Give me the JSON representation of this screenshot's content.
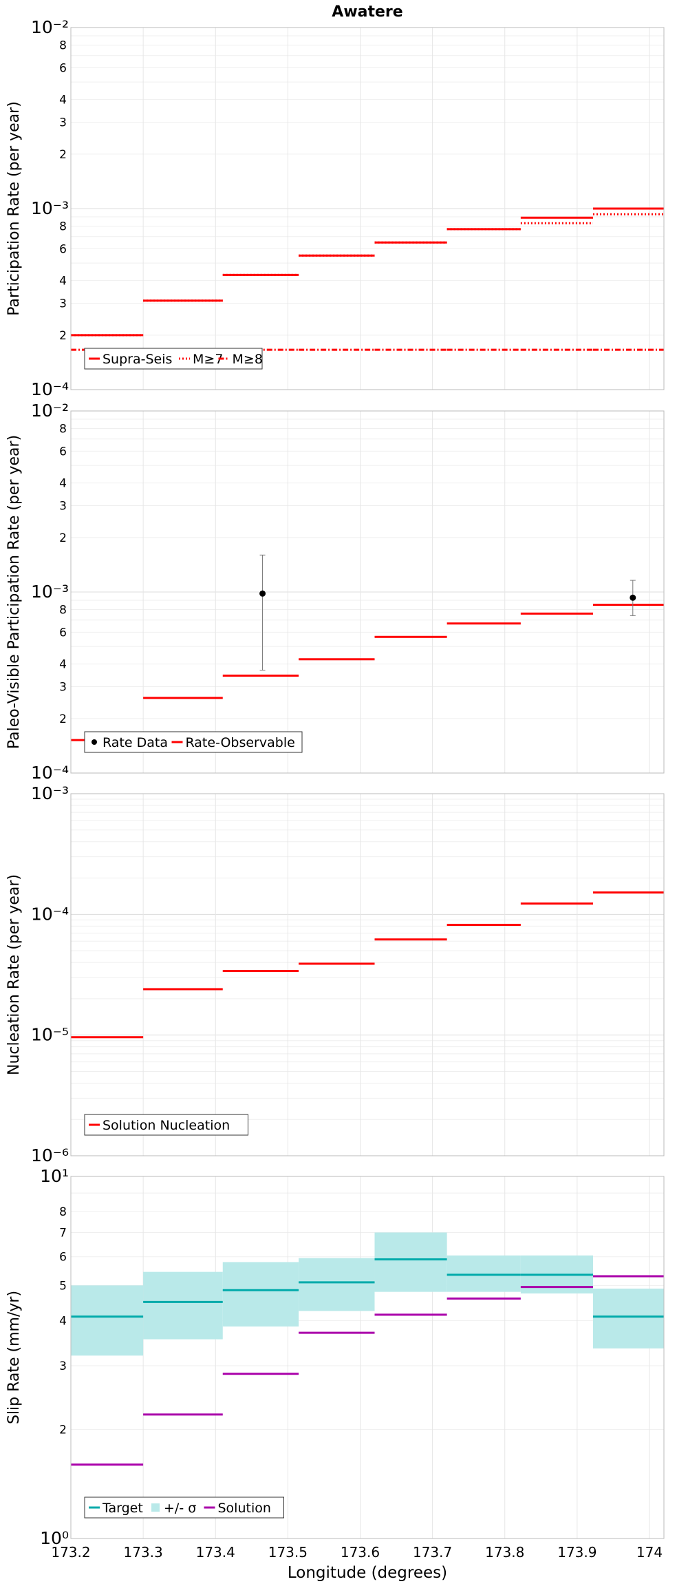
{
  "chart_data": [
    {
      "type": "step",
      "title": "Awatere",
      "ylabel": "Participation Rate (per year)",
      "yscale": "log",
      "ylim": [
        0.0001,
        0.01
      ],
      "xlim": [
        173.2,
        174.02
      ],
      "grid": true,
      "legend_position": "bottom-left",
      "bins": [
        [
          173.2,
          173.3
        ],
        [
          173.3,
          173.41
        ],
        [
          173.41,
          173.515
        ],
        [
          173.515,
          173.62
        ],
        [
          173.62,
          173.72
        ],
        [
          173.72,
          173.822
        ],
        [
          173.822,
          173.922
        ],
        [
          173.922,
          174.022
        ]
      ],
      "series": [
        {
          "name": "Supra-Seis",
          "style": "solid",
          "color": "#ff0000",
          "values": [
            0.0002,
            0.00031,
            0.00043,
            0.00055,
            0.00065,
            0.00077,
            0.00089,
            0.001
          ]
        },
        {
          "name": "M≥7",
          "style": "dotted",
          "color": "#ff0000",
          "values": [
            0.0002,
            0.00031,
            0.00043,
            0.00055,
            0.00065,
            0.00077,
            0.00083,
            0.00093
          ]
        },
        {
          "name": "M≥8",
          "style": "dashdot",
          "color": "#ff0000",
          "values": [
            0.000166,
            0.000166,
            0.000166,
            0.000166,
            0.000166,
            0.000166,
            0.000166,
            0.000166
          ]
        }
      ]
    },
    {
      "type": "step",
      "ylabel": "Paleo-Visible Participation Rate (per year)",
      "yscale": "log",
      "ylim": [
        0.0001,
        0.01
      ],
      "xlim": [
        173.2,
        174.02
      ],
      "grid": true,
      "legend_position": "bottom-left",
      "bins": [
        [
          173.2,
          173.3
        ],
        [
          173.3,
          173.41
        ],
        [
          173.41,
          173.515
        ],
        [
          173.515,
          173.62
        ],
        [
          173.62,
          173.72
        ],
        [
          173.72,
          173.822
        ],
        [
          173.822,
          173.922
        ],
        [
          173.922,
          174.022
        ]
      ],
      "series": [
        {
          "name": "Rate Data",
          "style": "points",
          "color": "#000000",
          "points": [
            {
              "x": 173.465,
              "y": 0.00098,
              "lo": 0.00037,
              "hi": 0.0016
            },
            {
              "x": 173.977,
              "y": 0.00093,
              "lo": 0.00074,
              "hi": 0.00116
            }
          ]
        },
        {
          "name": "Rate-Observable",
          "style": "solid",
          "color": "#ff0000",
          "values": [
            0.000152,
            0.00026,
            0.000345,
            0.000425,
            0.000565,
            0.00067,
            0.00076,
            0.00085
          ]
        }
      ]
    },
    {
      "type": "step",
      "ylabel": "Nucleation Rate (per year)",
      "yscale": "log",
      "ylim": [
        1e-06,
        0.001
      ],
      "xlim": [
        173.2,
        174.02
      ],
      "grid": true,
      "legend_position": "bottom-left",
      "bins": [
        [
          173.2,
          173.3
        ],
        [
          173.3,
          173.41
        ],
        [
          173.41,
          173.515
        ],
        [
          173.515,
          173.62
        ],
        [
          173.62,
          173.72
        ],
        [
          173.72,
          173.822
        ],
        [
          173.822,
          173.922
        ],
        [
          173.922,
          174.022
        ]
      ],
      "series": [
        {
          "name": "Solution Nucleation",
          "style": "solid",
          "color": "#ff0000",
          "values": [
            9.6e-06,
            2.4e-05,
            3.4e-05,
            3.9e-05,
            6.2e-05,
            8.2e-05,
            0.000123,
            0.000152
          ]
        }
      ]
    },
    {
      "type": "step",
      "xlabel": "Longitude (degrees)",
      "ylabel": "Slip Rate (mm/yr)",
      "yscale": "log",
      "ylim": [
        1,
        10
      ],
      "xlim": [
        173.2,
        174.02
      ],
      "xticks": [
        "173.2",
        "173.3",
        "173.4",
        "173.5",
        "173.6",
        "173.7",
        "173.8",
        "173.9",
        "174"
      ],
      "grid": true,
      "legend_position": "bottom-left",
      "bins": [
        [
          173.2,
          173.3
        ],
        [
          173.3,
          173.41
        ],
        [
          173.41,
          173.515
        ],
        [
          173.515,
          173.62
        ],
        [
          173.62,
          173.72
        ],
        [
          173.72,
          173.822
        ],
        [
          173.822,
          173.922
        ],
        [
          173.922,
          174.022
        ]
      ],
      "series": [
        {
          "name": "Target",
          "style": "solid",
          "color": "#00aaaa",
          "values": [
            4.1,
            4.5,
            4.85,
            5.1,
            5.9,
            5.35,
            5.35,
            4.1
          ]
        },
        {
          "name": "+/- σ",
          "style": "band",
          "color": "#b9e9e9",
          "lower": [
            3.2,
            3.55,
            3.85,
            4.25,
            4.8,
            4.8,
            4.75,
            3.35
          ],
          "upper": [
            5.0,
            5.45,
            5.8,
            5.95,
            7.0,
            6.05,
            6.05,
            4.9
          ]
        },
        {
          "name": "Solution",
          "style": "solid",
          "color": "#aa00aa",
          "values": [
            1.6,
            2.2,
            2.85,
            3.7,
            4.15,
            4.6,
            4.95,
            5.3
          ]
        }
      ]
    }
  ]
}
